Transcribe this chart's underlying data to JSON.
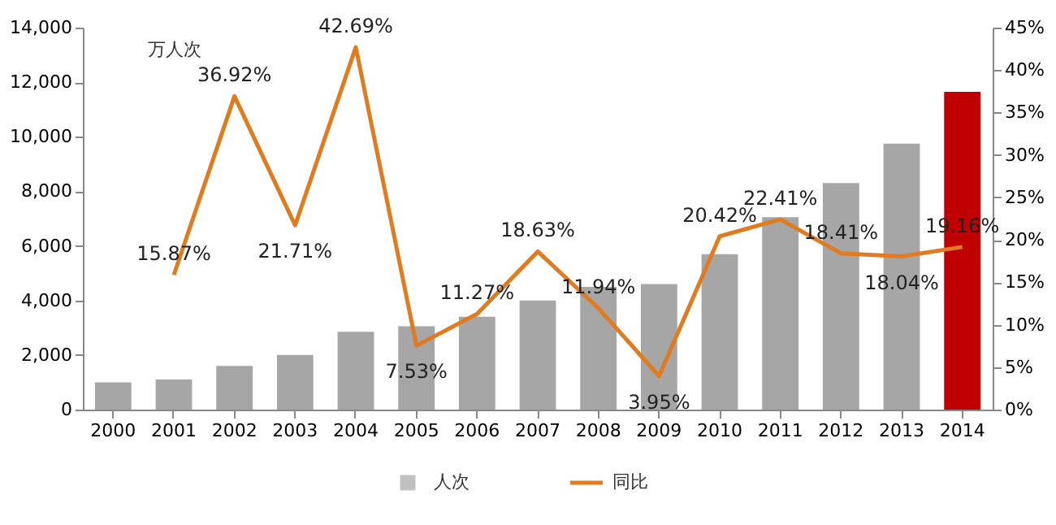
{
  "chart_data": {
    "type": "bar",
    "categories": [
      "2000",
      "2001",
      "2002",
      "2003",
      "2004",
      "2005",
      "2006",
      "2007",
      "2008",
      "2009",
      "2010",
      "2011",
      "2012",
      "2013",
      "2014"
    ],
    "series": [
      {
        "name": "人次",
        "color": "#a6a6a6",
        "colors": [
          "#a6a6a6",
          "#a6a6a6",
          "#a6a6a6",
          "#a6a6a6",
          "#a6a6a6",
          "#a6a6a6",
          "#a6a6a6",
          "#a6a6a6",
          "#a6a6a6",
          "#a6a6a6",
          "#a6a6a6",
          "#a6a6a6",
          "#a6a6a6",
          "#a6a6a6",
          "#c00000"
        ],
        "values": [
          1000,
          1100,
          1600,
          2000,
          2850,
          3050,
          3400,
          4000,
          4500,
          4600,
          5700,
          7050,
          8300,
          9750,
          11650
        ]
      },
      {
        "name": "同比",
        "type": "line",
        "axis": "y2",
        "color": "#e07b20",
        "values": [
          null,
          15.87,
          36.92,
          21.71,
          42.69,
          7.53,
          11.27,
          18.63,
          11.94,
          3.95,
          20.42,
          22.41,
          18.41,
          18.04,
          19.16
        ],
        "value_labels": [
          null,
          "15.87%",
          "36.92%",
          "21.71%",
          "42.69%",
          "7.53%",
          "11.27%",
          "18.63%",
          "11.94%",
          "3.95%",
          "20.42%",
          "22.41%",
          "18.41%",
          "18.04%",
          "19.16%"
        ]
      }
    ],
    "ylim": [
      0,
      14000
    ],
    "yticks": [
      {
        "value": 0,
        "label": "0"
      },
      {
        "value": 2000,
        "label": "2,000"
      },
      {
        "value": 4000,
        "label": "4,000"
      },
      {
        "value": 6000,
        "label": "6,000"
      },
      {
        "value": 8000,
        "label": "8,000"
      },
      {
        "value": 10000,
        "label": "10,000"
      },
      {
        "value": 12000,
        "label": "12,000"
      },
      {
        "value": 14000,
        "label": "14,000"
      }
    ],
    "y2lim": [
      0,
      45
    ],
    "y2ticks": [
      {
        "value": 0,
        "label": "0%"
      },
      {
        "value": 5,
        "label": "5%"
      },
      {
        "value": 10,
        "label": "10%"
      },
      {
        "value": 15,
        "label": "15%"
      },
      {
        "value": 20,
        "label": "20%"
      },
      {
        "value": 25,
        "label": "25%"
      },
      {
        "value": 30,
        "label": "30%"
      },
      {
        "value": 35,
        "label": "35%"
      },
      {
        "value": 40,
        "label": "40%"
      },
      {
        "value": 45,
        "label": "45%"
      }
    ],
    "annotations": [
      "万人次"
    ],
    "grid": false,
    "legend": "bottom"
  }
}
